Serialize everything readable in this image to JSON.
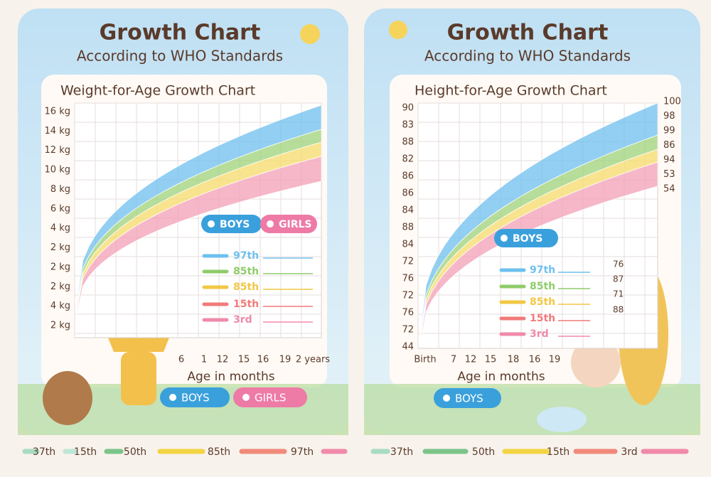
{
  "panels": [
    {
      "title": "Growth Chart",
      "subtitle": "According to WHO Standards",
      "chart_title": "Weight-for-Age Growth Chart",
      "y_labels": [
        "16 kg",
        "14 kg",
        "12 kg",
        "10 kg",
        "8 kg",
        "6 kg",
        "4 kg",
        "2 kg",
        "2 kg",
        "2 kg",
        "4 kg",
        "2 kg"
      ],
      "right_labels": [],
      "x_labels": [
        "6",
        "1",
        "12",
        "15",
        "16",
        "19",
        "2 years"
      ],
      "x_axis_label": "Age in months",
      "legend_toggle": [
        "BOYS",
        "GIRLS"
      ],
      "percentiles": [
        "97th",
        "85th",
        "85th",
        "15th",
        "3rd"
      ],
      "ruler_labels": [],
      "buttons": [
        "BOYS",
        "GIRLS"
      ],
      "footer": [
        "37th",
        "15th",
        "50th",
        "85th",
        "97th"
      ]
    },
    {
      "title": "Growth Chart",
      "subtitle": "According to WHO Standards",
      "chart_title": "Height-for-Age Growth Chart",
      "y_labels": [
        "90",
        "83",
        "88",
        "82",
        "86",
        "86",
        "84",
        "88",
        "84",
        "72",
        "76",
        "72",
        "76",
        "72",
        "44"
      ],
      "right_labels": [
        "100",
        "98",
        "99",
        "86",
        "94",
        "53",
        "54"
      ],
      "x_labels": [
        "Birth",
        "7",
        "12",
        "15",
        "18",
        "16",
        "19"
      ],
      "x_axis_label": "Age in months",
      "legend_toggle": [
        "BOYS"
      ],
      "percentiles": [
        "97th",
        "85th",
        "85th",
        "15th",
        "3rd"
      ],
      "ruler_labels": [
        "76",
        "87",
        "71",
        "88"
      ],
      "buttons": [
        "BOYS"
      ],
      "footer": [
        "37th",
        "50th",
        "15th",
        "3rd"
      ]
    }
  ]
}
